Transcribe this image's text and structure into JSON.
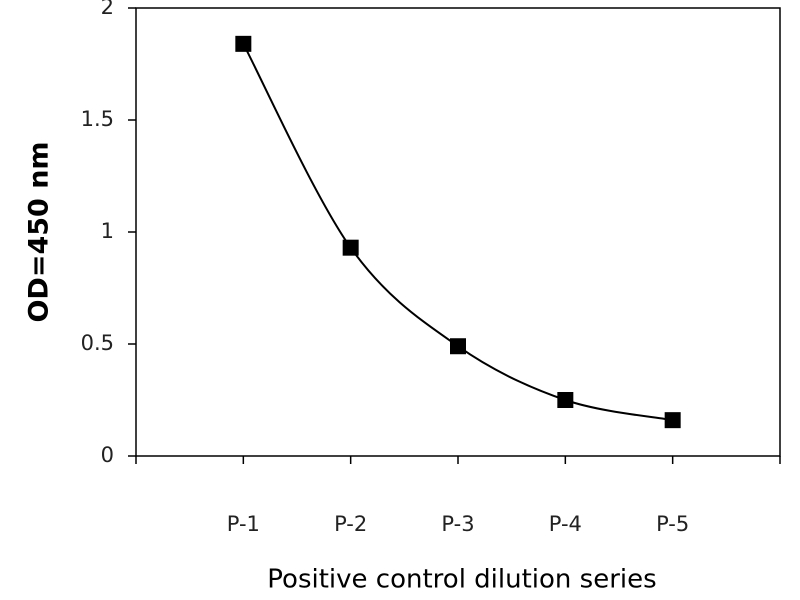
{
  "chart_data": {
    "type": "line",
    "smooth": true,
    "color": "#000000",
    "y_label": "OD=450 nm",
    "x_label": "Positive control dilution series",
    "categories": [
      "P-1",
      "P-2",
      "P-3",
      "P-4",
      "P-5"
    ],
    "values": [
      1.84,
      0.93,
      0.49,
      0.25,
      0.16
    ],
    "ylim": [
      0,
      2
    ],
    "yticks": [
      0,
      {
        "value": 0.5,
        "label": "0.5"
      },
      1,
      {
        "value": 1.5,
        "label": "1.5"
      },
      2
    ],
    "grid": false
  }
}
